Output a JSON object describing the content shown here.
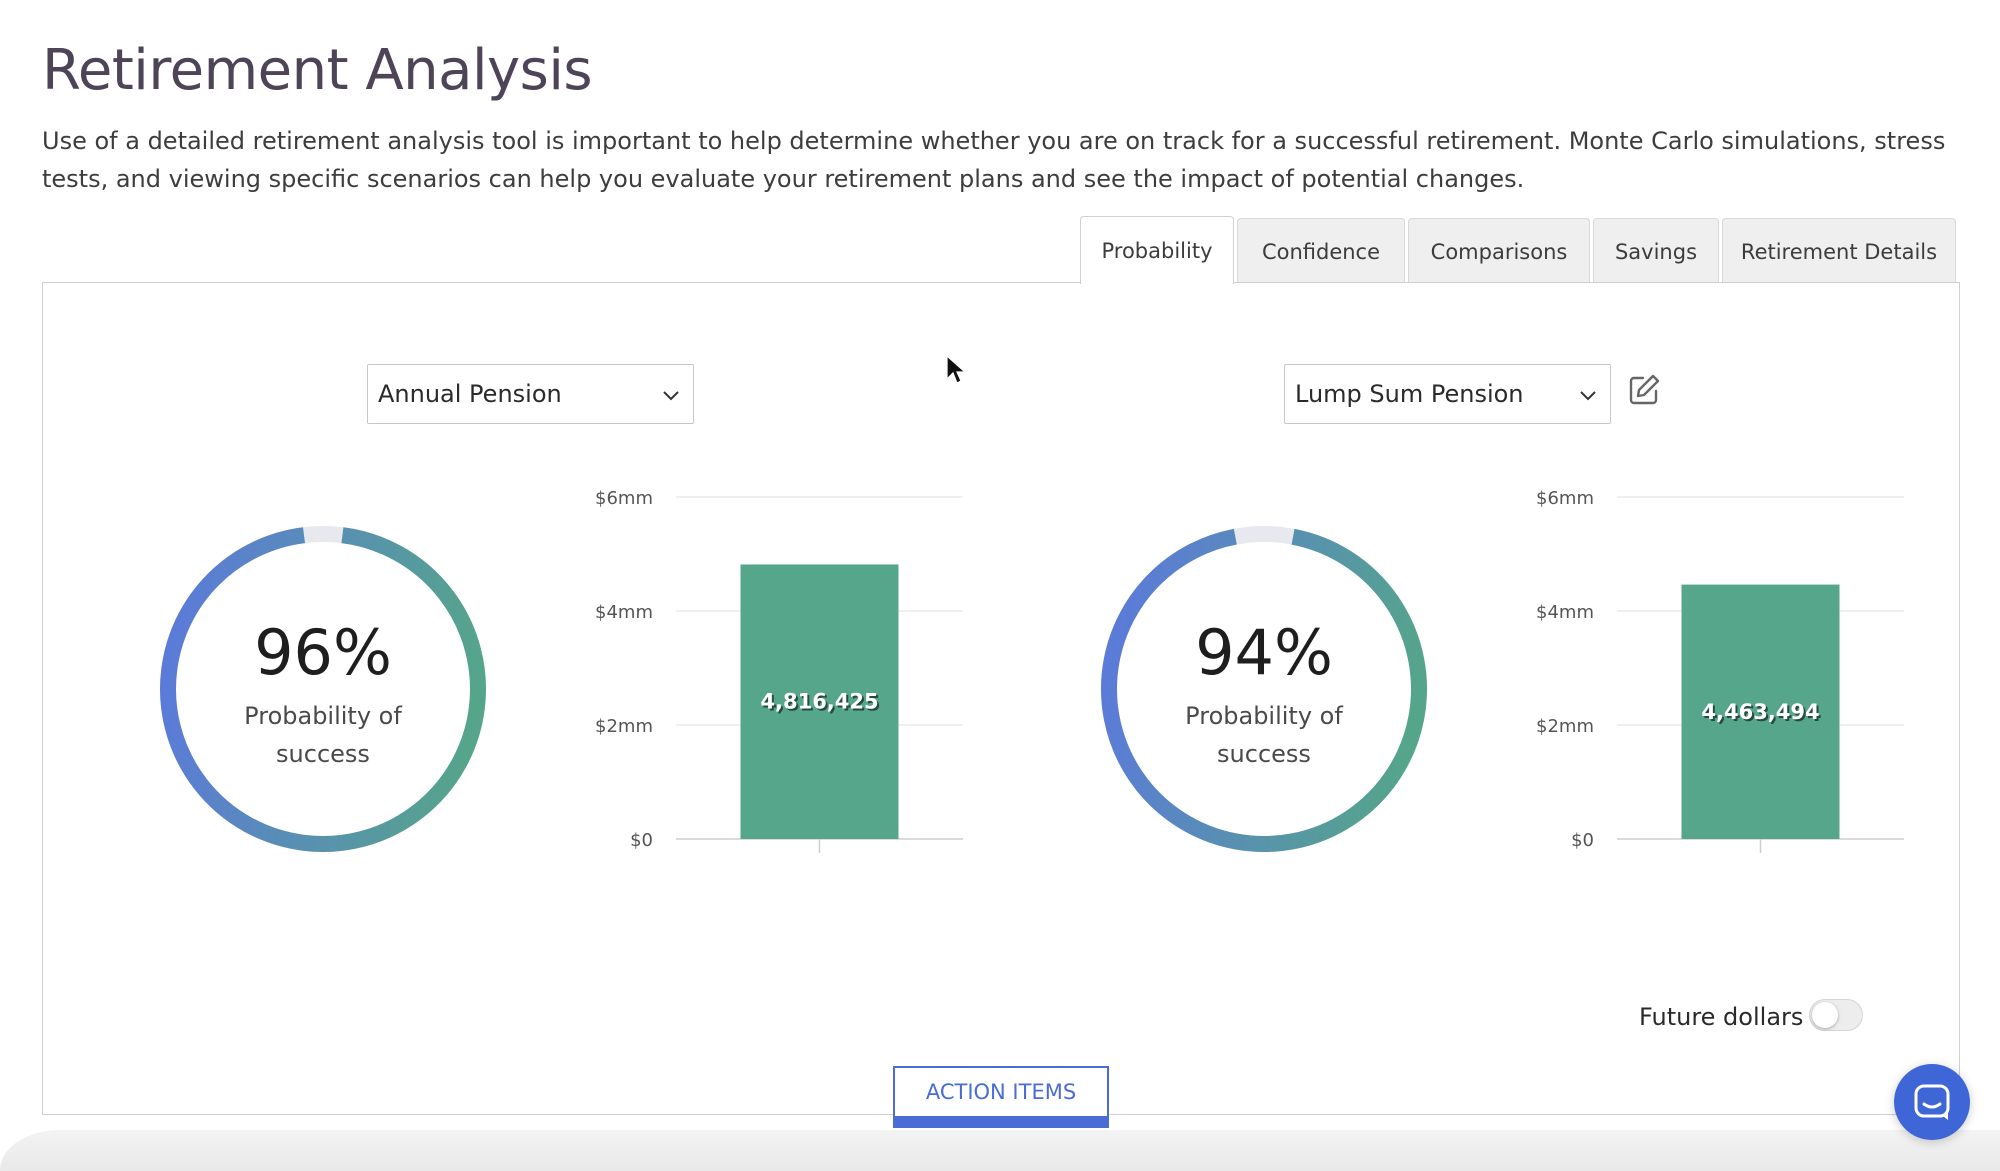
{
  "header": {
    "title": "Retirement Analysis",
    "description": "Use of a detailed retirement analysis tool is important to help determine whether you are on track for a successful retirement. Monte Carlo simulations, stress tests, and viewing specific scenarios can help you evaluate your retirement plans and see the impact of potential changes."
  },
  "tabs": [
    {
      "label": "Probability",
      "active": true
    },
    {
      "label": "Confidence",
      "active": false
    },
    {
      "label": "Comparisons",
      "active": false
    },
    {
      "label": "Savings",
      "active": false
    },
    {
      "label": "Retirement Details",
      "active": false
    }
  ],
  "scenarios": [
    {
      "select_value": "Annual Pension",
      "probability": 0.96,
      "probability_text": "96%",
      "probability_label": "Probability of success",
      "bar_value": 4816425,
      "bar_label": "4,816,425"
    },
    {
      "select_value": "Lump Sum Pension",
      "probability": 0.94,
      "probability_text": "94%",
      "probability_label": "Probability of success",
      "bar_value": 4463494,
      "bar_label": "4,463,494"
    }
  ],
  "chart_data": [
    {
      "type": "bar",
      "categories": [
        ""
      ],
      "values": [
        4816425
      ],
      "data_labels": [
        "4,816,425"
      ],
      "yticks": [
        "$0",
        "$2mm",
        "$4mm",
        "$6mm"
      ],
      "ylim": [
        0,
        6000000
      ],
      "grid": true
    },
    {
      "type": "bar",
      "categories": [
        ""
      ],
      "values": [
        4463494
      ],
      "data_labels": [
        "4,463,494"
      ],
      "yticks": [
        "$0",
        "$2mm",
        "$4mm",
        "$6mm"
      ],
      "ylim": [
        0,
        6000000
      ],
      "grid": true
    }
  ],
  "footer": {
    "future_dollars_label": "Future dollars",
    "future_dollars_on": false,
    "action_items_label": "ACTION ITEMS"
  },
  "colors": {
    "accent_blue": "#4b6cd4",
    "gauge_start": "#5b7bd8",
    "gauge_end": "#55a58a",
    "bar_green": "#56a68b"
  },
  "icons": {
    "edit": "edit-icon",
    "chevron": "chevron-down-icon",
    "chat": "chat-icon"
  }
}
